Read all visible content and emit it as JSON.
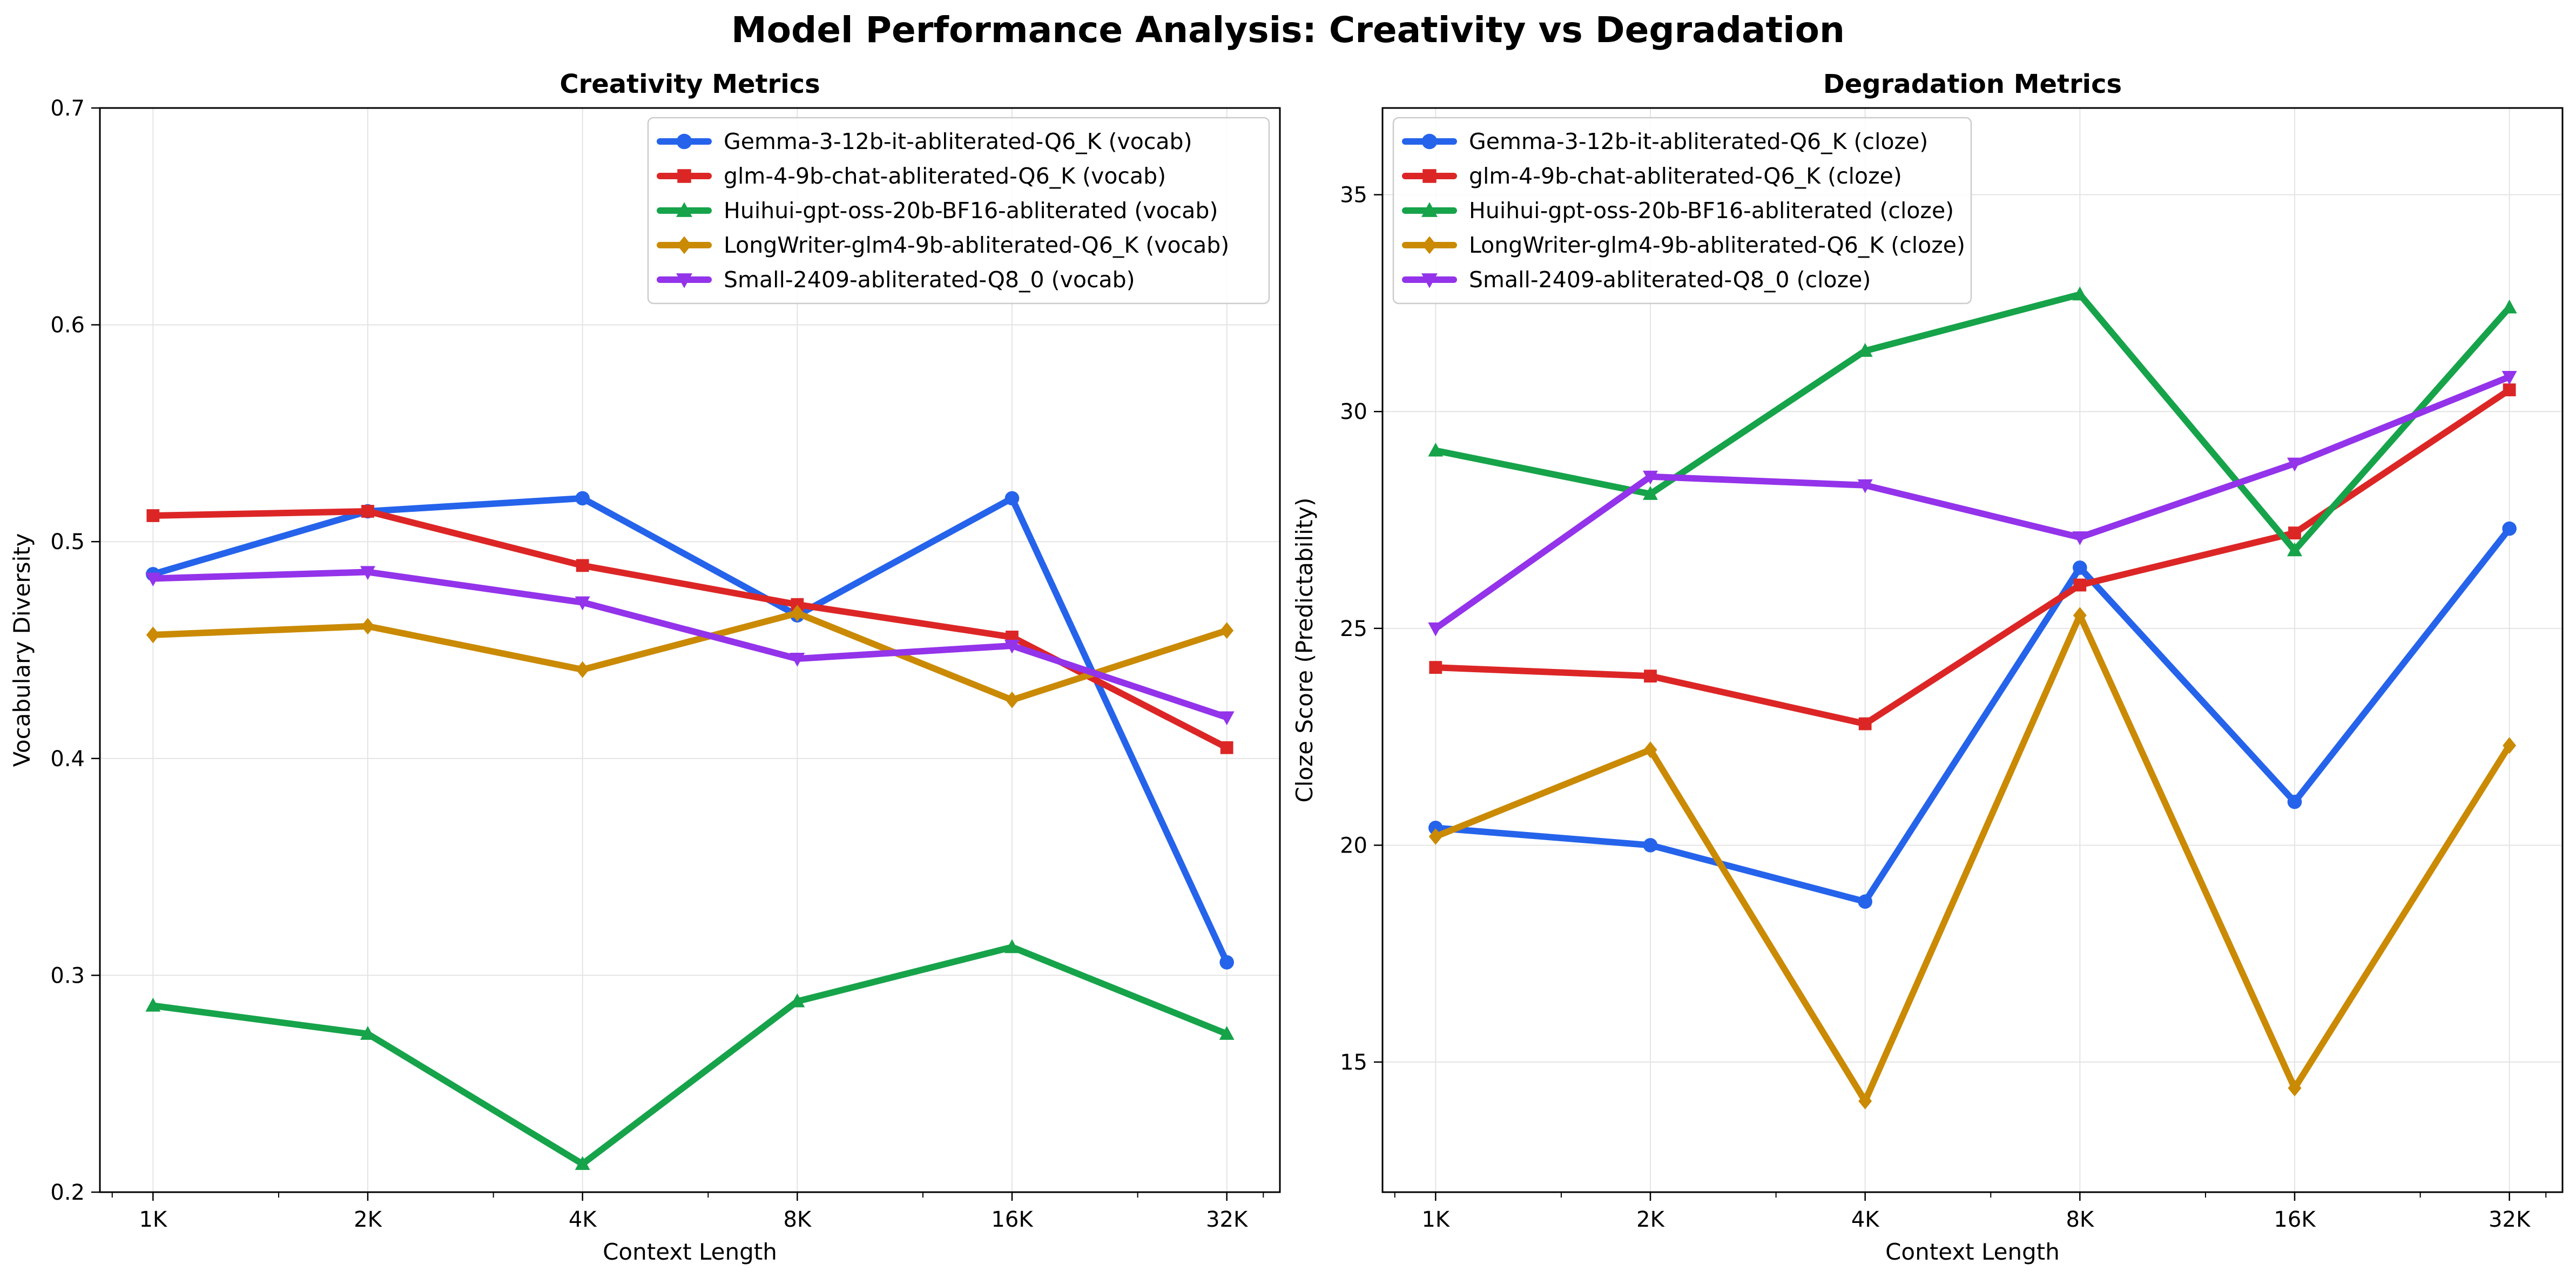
{
  "title": "Model Performance Analysis: Creativity vs Degradation",
  "chart_data": [
    {
      "type": "line",
      "title": "Creativity Metrics",
      "xlabel": "Context Length",
      "ylabel": "Vocabulary Diversity",
      "x_scale": "log2",
      "categories": [
        "1K",
        "2K",
        "4K",
        "8K",
        "16K",
        "32K"
      ],
      "ylim": [
        0.2,
        0.7
      ],
      "yticks": [
        0.2,
        0.3,
        0.4,
        0.5,
        0.6,
        0.7
      ],
      "ytick_labels": [
        "0.2",
        "0.3",
        "0.4",
        "0.5",
        "0.6",
        "0.7"
      ],
      "grid": true,
      "legend": "top-right",
      "series": [
        {
          "name": "Gemma-3-12b-it-abliterated-Q6_K (vocab)",
          "color": "#2563eb",
          "marker": "circle",
          "values": [
            0.485,
            0.514,
            0.52,
            0.466,
            0.52,
            0.306
          ]
        },
        {
          "name": "glm-4-9b-chat-abliterated-Q6_K (vocab)",
          "color": "#dc2626",
          "marker": "square",
          "values": [
            0.512,
            0.514,
            0.489,
            0.471,
            0.456,
            0.405
          ]
        },
        {
          "name": "Huihui-gpt-oss-20b-BF16-abliterated (vocab)",
          "color": "#16a34a",
          "marker": "triangle-up",
          "values": [
            0.286,
            0.273,
            0.213,
            0.288,
            0.313,
            0.273
          ]
        },
        {
          "name": "LongWriter-glm4-9b-abliterated-Q6_K (vocab)",
          "color": "#ca8a04",
          "marker": "diamond",
          "values": [
            0.457,
            0.461,
            0.441,
            0.467,
            0.427,
            0.459
          ]
        },
        {
          "name": "Small-2409-abliterated-Q8_0 (vocab)",
          "color": "#9333ea",
          "marker": "triangle-down",
          "values": [
            0.483,
            0.486,
            0.472,
            0.446,
            0.452,
            0.419
          ]
        }
      ]
    },
    {
      "type": "line",
      "title": "Degradation Metrics",
      "xlabel": "Context Length",
      "ylabel": "Cloze Score (Predictability)",
      "x_scale": "log2",
      "categories": [
        "1K",
        "2K",
        "4K",
        "8K",
        "16K",
        "32K"
      ],
      "ylim": [
        12.0,
        37.0
      ],
      "yticks": [
        15,
        20,
        25,
        30,
        35
      ],
      "ytick_labels": [
        "15",
        "20",
        "25",
        "30",
        "35"
      ],
      "grid": true,
      "legend": "top-left",
      "series": [
        {
          "name": "Gemma-3-12b-it-abliterated-Q6_K (cloze)",
          "color": "#2563eb",
          "marker": "circle",
          "values": [
            20.4,
            20.0,
            18.7,
            26.4,
            21.0,
            27.3
          ]
        },
        {
          "name": "glm-4-9b-chat-abliterated-Q6_K (cloze)",
          "color": "#dc2626",
          "marker": "square",
          "values": [
            24.1,
            23.9,
            22.8,
            26.0,
            27.2,
            30.5
          ]
        },
        {
          "name": "Huihui-gpt-oss-20b-BF16-abliterated (cloze)",
          "color": "#16a34a",
          "marker": "triangle-up",
          "values": [
            29.1,
            28.1,
            31.4,
            32.7,
            26.8,
            32.4
          ]
        },
        {
          "name": "LongWriter-glm4-9b-abliterated-Q6_K (cloze)",
          "color": "#ca8a04",
          "marker": "diamond",
          "values": [
            20.2,
            22.2,
            14.1,
            25.3,
            14.4,
            22.3
          ]
        },
        {
          "name": "Small-2409-abliterated-Q8_0 (cloze)",
          "color": "#9333ea",
          "marker": "triangle-down",
          "values": [
            25.0,
            28.5,
            28.3,
            27.1,
            28.8,
            30.8
          ]
        }
      ]
    }
  ]
}
